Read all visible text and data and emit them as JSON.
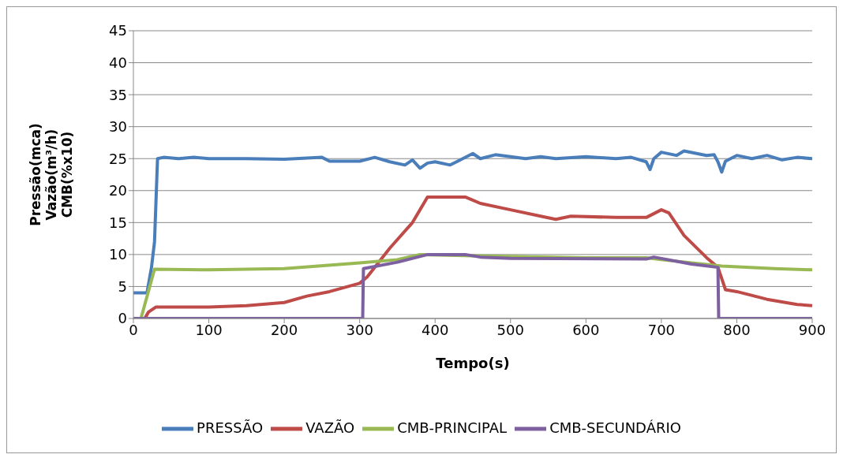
{
  "chart_data": {
    "type": "line",
    "xlabel": "Tempo(s)",
    "ylabel": "Pressão(mca)\nVazão(m³/h)\nCMB(%x10)",
    "xlim": [
      0,
      900
    ],
    "xticks": [
      0,
      100,
      200,
      300,
      400,
      500,
      600,
      700,
      800,
      900
    ],
    "ylim": [
      0,
      45
    ],
    "yticks": [
      0,
      5,
      10,
      15,
      20,
      25,
      30,
      35,
      40,
      45
    ],
    "grid": "y",
    "legend": "bottom",
    "marker": "none",
    "line_style": "solid",
    "series": [
      {
        "name": "PRESSÃO",
        "color": "#4a7ebb",
        "x": [
          0,
          18,
          24,
          28,
          32,
          40,
          60,
          80,
          100,
          150,
          200,
          250,
          260,
          300,
          320,
          340,
          360,
          370,
          380,
          390,
          400,
          420,
          430,
          450,
          460,
          480,
          500,
          520,
          540,
          560,
          600,
          640,
          660,
          680,
          685,
          690,
          700,
          720,
          730,
          760,
          770,
          775,
          780,
          785,
          800,
          820,
          840,
          860,
          880,
          900
        ],
        "values": [
          4,
          4,
          8,
          12,
          25,
          25.2,
          25,
          25.2,
          25,
          25,
          24.9,
          25.2,
          24.6,
          24.6,
          25.2,
          24.5,
          24,
          24.8,
          23.5,
          24.3,
          24.5,
          24,
          24.6,
          25.8,
          25,
          25.6,
          25.3,
          25,
          25.3,
          25,
          25.3,
          25,
          25.2,
          24.5,
          23.3,
          25,
          26,
          25.5,
          26.2,
          25.5,
          25.6,
          24.5,
          22.9,
          24.6,
          25.5,
          25,
          25.5,
          24.8,
          25.2,
          25
        ]
      },
      {
        "name": "VAZÃO",
        "color": "#be4b48",
        "x": [
          15,
          20,
          30,
          100,
          150,
          200,
          230,
          260,
          300,
          310,
          340,
          370,
          380,
          390,
          440,
          460,
          500,
          540,
          560,
          580,
          640,
          680,
          700,
          710,
          730,
          760,
          775,
          785,
          800,
          840,
          880,
          900
        ],
        "values": [
          0,
          1,
          1.8,
          1.8,
          2,
          2.5,
          3.5,
          4.2,
          5.5,
          6.5,
          11,
          15,
          17,
          19,
          19,
          18,
          17,
          16,
          15.5,
          16,
          15.8,
          15.8,
          17,
          16.5,
          13,
          9.5,
          8,
          4.5,
          4.2,
          3,
          2.2,
          2
        ]
      },
      {
        "name": "CMB-PRINCIPAL",
        "color": "#98b954",
        "x": [
          10,
          28,
          100,
          200,
          300,
          350,
          380,
          450,
          600,
          680,
          700,
          780,
          850,
          900
        ],
        "values": [
          0,
          7.7,
          7.6,
          7.8,
          8.7,
          9.2,
          10,
          9.8,
          9.5,
          9.5,
          9.2,
          8.2,
          7.8,
          7.6
        ]
      },
      {
        "name": "CMB-SECUNDÁRIO",
        "color": "#7d60a0",
        "x": [
          0,
          304,
          305,
          350,
          390,
          440,
          460,
          500,
          680,
          690,
          740,
          775,
          776,
          900
        ],
        "values": [
          0,
          0,
          7.8,
          8.8,
          10,
          10,
          9.6,
          9.4,
          9.3,
          9.6,
          8.5,
          8,
          0,
          0
        ]
      }
    ]
  }
}
